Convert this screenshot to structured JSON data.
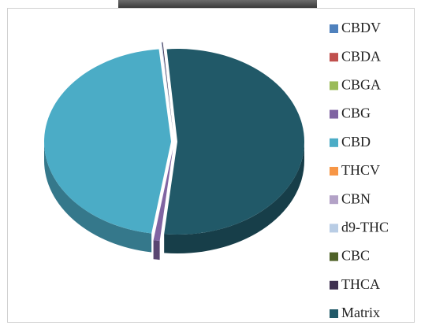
{
  "chart_data": {
    "type": "pie",
    "categories": [
      "CBDV",
      "CBDA",
      "CBGA",
      "CBG",
      "CBD",
      "THCV",
      "CBN",
      "d9-THC",
      "CBC",
      "THCA",
      "Matrix"
    ],
    "values": [
      0,
      0,
      0,
      0.8,
      46,
      0,
      0,
      0.1,
      0,
      0.1,
      53
    ],
    "colors": [
      "#4f81bd",
      "#c0504d",
      "#9bbb59",
      "#8064a2",
      "#4bacc6",
      "#f79646",
      "#b3a2c7",
      "#b9cde5",
      "#4f6228",
      "#3f3151",
      "#215968"
    ],
    "legend": "right"
  }
}
